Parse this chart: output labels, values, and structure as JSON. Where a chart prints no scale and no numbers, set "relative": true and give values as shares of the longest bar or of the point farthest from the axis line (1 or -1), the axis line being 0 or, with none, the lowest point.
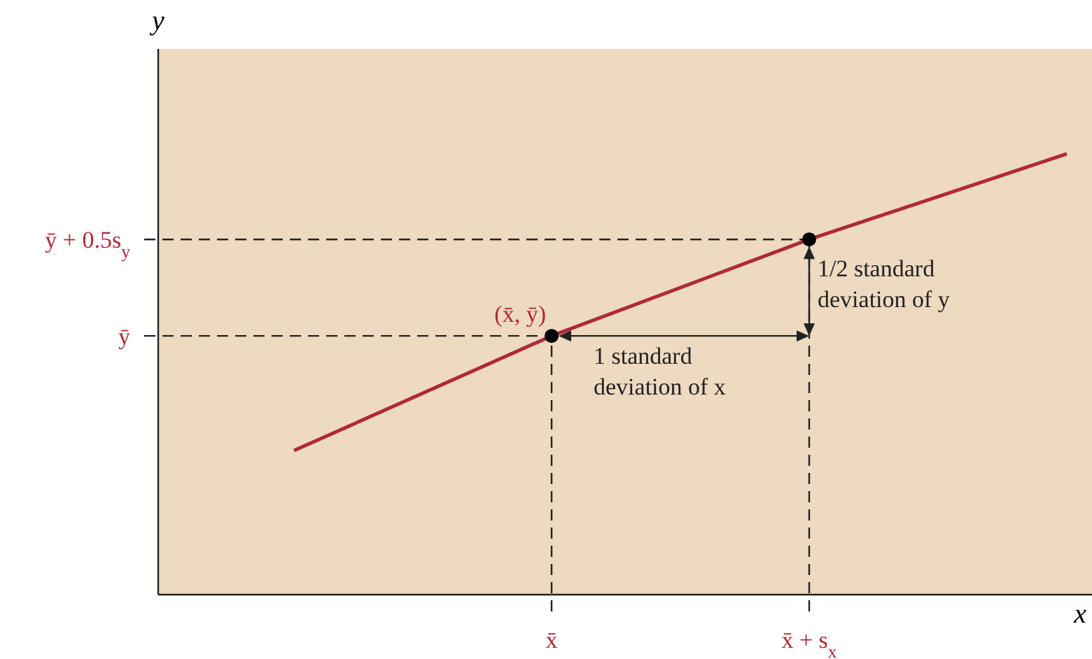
{
  "chart_data": {
    "type": "line",
    "relative": true,
    "xlabel": "x",
    "ylabel": "y",
    "categories": [
      null,
      "x̄",
      "x̄ + s$_{x}$",
      null
    ],
    "series": [
      {
        "color": "#b0283a",
        "values": [
          0.327,
          0.587,
          0.806,
          1
        ]
      },
      {
        "type": "scatter",
        "color": "#000000",
        "marker": "circle",
        "values": [
          null,
          0.587,
          0.806,
          null
        ]
      }
    ],
    "ref_lines": [
      {
        "axis": "y",
        "value": 0.587,
        "label": "ȳ",
        "line_style": "dashed"
      },
      {
        "axis": "y",
        "value": 0.806,
        "label": "ȳ + 0.5s$_{y}$",
        "line_style": "dashed"
      }
    ],
    "annotations": [
      "(x̄, ȳ)",
      "1 standard deviation of x",
      "1/2 standard deviation of y"
    ]
  }
}
